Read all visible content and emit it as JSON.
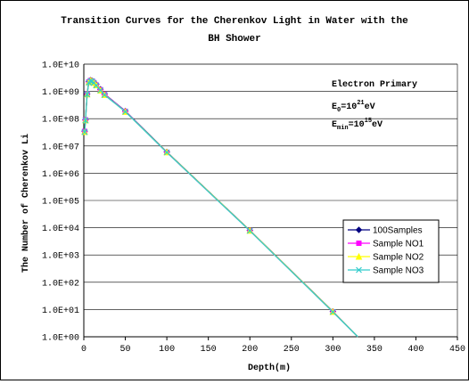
{
  "chart_data": {
    "type": "line",
    "title_line1": "Transition Curves for the Cherenkov Light in Water with the",
    "title_line2": "BH Shower",
    "xlabel": "Depth(m)",
    "ylabel": "The Number of Cherenkov Li",
    "xlim": [
      0,
      450
    ],
    "ylim_log10": [
      0,
      10
    ],
    "x_ticks": [
      0,
      50,
      100,
      150,
      200,
      250,
      300,
      350,
      400,
      450
    ],
    "x_tick_labels": [
      "0",
      "50",
      "100",
      "150",
      "200",
      "250",
      "300",
      "350",
      "400",
      "450"
    ],
    "y_tick_labels": [
      "1.0E+00",
      "1.0E+01",
      "1.0E+02",
      "1.0E+03",
      "1.0E+04",
      "1.0E+05",
      "1.0E+06",
      "1.0E+07",
      "1.0E+08",
      "1.0E+09",
      "1.0E+10"
    ],
    "y_scale": "log",
    "grid": "horizontal",
    "legend_position": "right",
    "annotation": {
      "line1": "Electron Primary",
      "e0_main": "E",
      "e0_sub": "0",
      "e0_eq": "=10",
      "e0_sup": "21",
      "e0_unit": "eV",
      "emin_main": "E",
      "emin_sub": "min",
      "emin_eq": "=10",
      "emin_sup": "15",
      "emin_unit": "eV"
    },
    "x": [
      1,
      2,
      4,
      6,
      8,
      10,
      12,
      15,
      20,
      25,
      50,
      100,
      200,
      300,
      330
    ],
    "series": [
      {
        "name": "100Samples",
        "color": "#000080",
        "marker": "diamond",
        "y": [
          35000000.0,
          90000000.0,
          800000000.0,
          2300000000.0,
          2600000000.0,
          2500000000.0,
          2200000000.0,
          1800000000.0,
          1200000000.0,
          800000000.0,
          190000000.0,
          6000000.0,
          8000.0,
          8.5,
          1.0
        ]
      },
      {
        "name": "Sample NO1",
        "color": "#ff00ff",
        "marker": "square",
        "y": [
          34000000.0,
          90000000.0,
          800000000.0,
          2200000000.0,
          2500000000.0,
          2400000000.0,
          2100000000.0,
          1700000000.0,
          1150000000.0,
          780000000.0,
          185000000.0,
          5800000.0,
          7800.0,
          8.2,
          1.0
        ]
      },
      {
        "name": "Sample NO2",
        "color": "#ffff00",
        "marker": "triangle",
        "y": [
          33000000.0,
          88000000.0,
          790000000.0,
          2200000000.0,
          2500000000.0,
          2400000000.0,
          2100000000.0,
          1700000000.0,
          1100000000.0,
          750000000.0,
          180000000.0,
          5900000.0,
          7900.0,
          8.3,
          1.0
        ]
      },
      {
        "name": "Sample NO3",
        "color": "#33cccc",
        "marker": "x",
        "y": [
          32000000.0,
          86000000.0,
          780000000.0,
          2100000000.0,
          2400000000.0,
          2350000000.0,
          2050000000.0,
          1650000000.0,
          1100000000.0,
          740000000.0,
          180000000.0,
          5800000.0,
          7700.0,
          8.1,
          1.0
        ]
      }
    ]
  }
}
